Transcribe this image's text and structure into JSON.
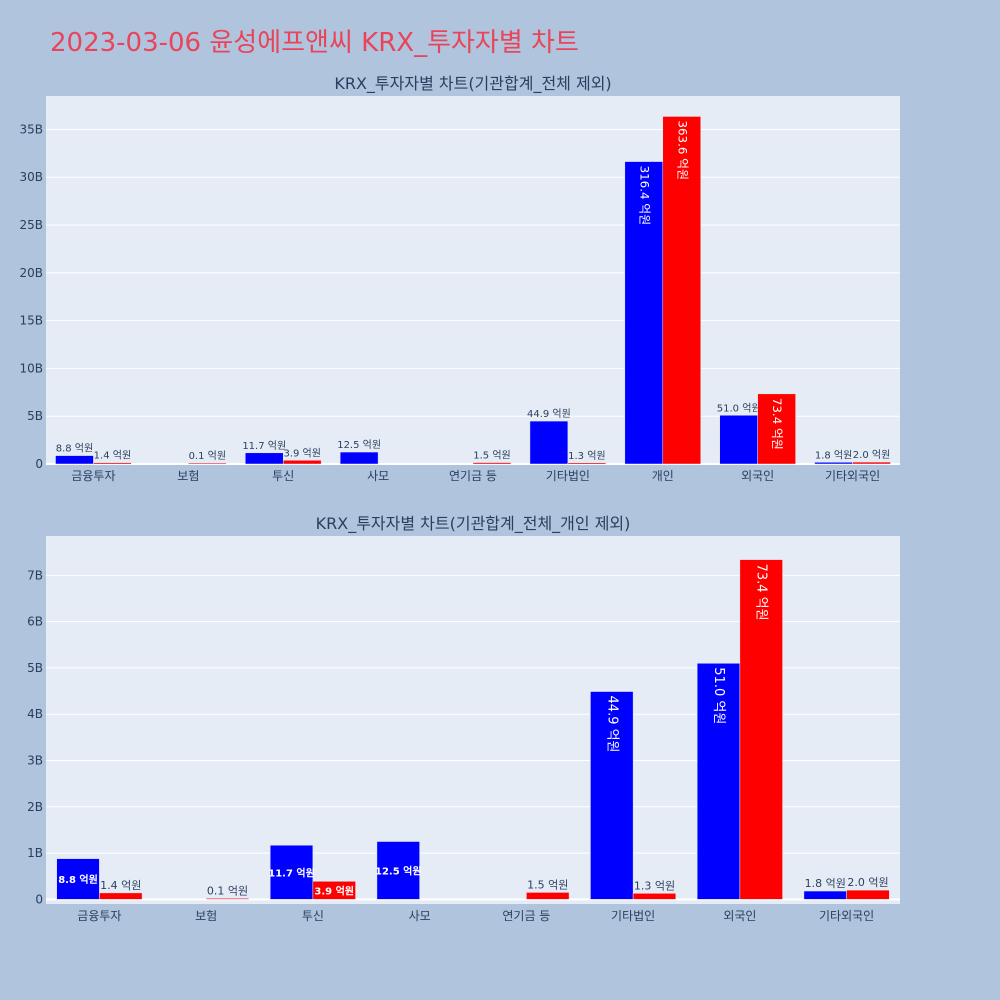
{
  "page_title": "2023-03-06 윤성에프앤씨 KRX_투자자별 차트",
  "colors": {
    "buy": "#0000ff",
    "sell": "#ff0000",
    "plot_bg": "#e5ecf6",
    "page_bg": "#b0c4de",
    "title": "#e8455a"
  },
  "chart_data": [
    {
      "type": "bar",
      "title": "KRX_투자자별 차트(기관합계_전체 제외)",
      "categories": [
        "금융투자",
        "보험",
        "투신",
        "사모",
        "연기금 등",
        "기타법인",
        "개인",
        "외국인",
        "기타외국인"
      ],
      "series": [
        {
          "values": [
            0.88,
            0,
            1.17,
            1.25,
            0,
            4.49,
            31.64,
            5.1,
            0.18
          ],
          "labels": [
            "8.8 억원",
            "",
            "11.7 억원",
            "12.5 억원",
            "",
            "44.9 억원",
            "316.4 억원",
            "51.0 억원",
            "1.8 억원"
          ]
        },
        {
          "values": [
            0.14,
            0.01,
            0.39,
            0,
            0.15,
            0.13,
            36.36,
            7.34,
            0.2
          ],
          "labels": [
            "1.4 억원",
            "0.1 억원",
            "3.9 억원",
            "",
            "1.5 억원",
            "1.3 억원",
            "363.6 억원",
            "73.4 억원",
            "2.0 억원"
          ]
        }
      ],
      "ylim": [
        0,
        38.5
      ],
      "yticks": [
        0,
        5,
        10,
        15,
        20,
        25,
        30,
        35
      ],
      "ytick_labels": [
        "0",
        "5B",
        "10B",
        "15B",
        "20B",
        "25B",
        "30B",
        "35B"
      ],
      "xlabel": "",
      "ylabel": "",
      "grid": true
    },
    {
      "type": "bar",
      "title": "KRX_투자자별 차트(기관합계_전체_개인 제외)",
      "categories": [
        "금융투자",
        "보험",
        "투신",
        "사모",
        "연기금 등",
        "기타법인",
        "외국인",
        "기타외국인"
      ],
      "series": [
        {
          "values": [
            0.88,
            0,
            1.17,
            1.25,
            0,
            4.49,
            5.1,
            0.18
          ],
          "labels": [
            "8.8 억원",
            "",
            "11.7 억원",
            "12.5 억원",
            "",
            "44.9 억원",
            "51.0 억원",
            "1.8 억원"
          ]
        },
        {
          "values": [
            0.14,
            0.01,
            0.39,
            0,
            0.15,
            0.13,
            7.34,
            0.2
          ],
          "labels": [
            "1.4 억원",
            "0.1 억원",
            "3.9 억원",
            "",
            "1.5 억원",
            "1.3 억원",
            "73.4 억원",
            "2.0 억원"
          ]
        }
      ],
      "ylim": [
        -0.1,
        7.85
      ],
      "yticks": [
        0,
        1,
        2,
        3,
        4,
        5,
        6,
        7
      ],
      "ytick_labels": [
        "0",
        "1B",
        "2B",
        "3B",
        "4B",
        "5B",
        "6B",
        "7B"
      ],
      "xlabel": "",
      "ylabel": "",
      "grid": true
    }
  ]
}
